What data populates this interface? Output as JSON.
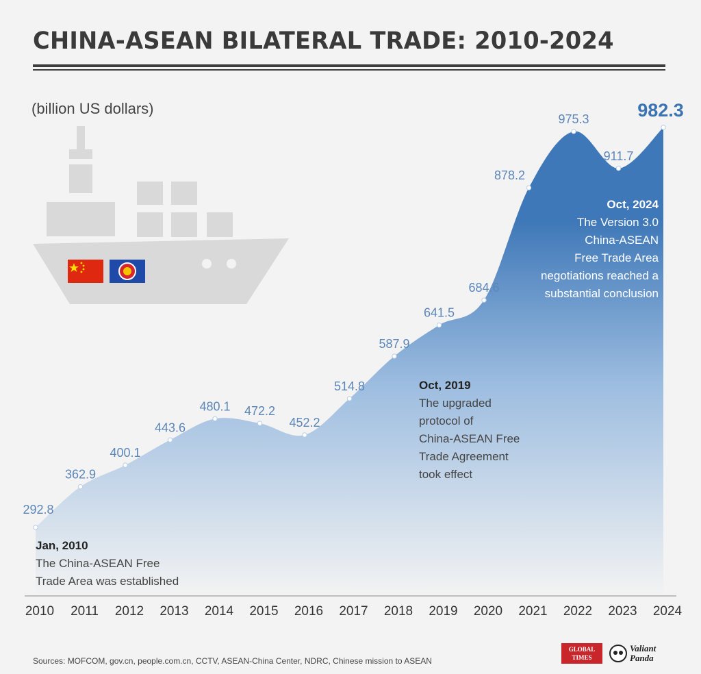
{
  "header": {
    "title": "CHINA-ASEAN BILATERAL TRADE: 2010-2024",
    "unit": "(billion US dollars)"
  },
  "chart_data": {
    "type": "area",
    "x": [
      "2010",
      "2011",
      "2012",
      "2013",
      "2014",
      "2015",
      "2016",
      "2017",
      "2018",
      "2019",
      "2020",
      "2021",
      "2022",
      "2023",
      "2024"
    ],
    "series": [
      {
        "values": [
          292.8,
          362.9,
          400.1,
          443.6,
          480.1,
          472.2,
          452.2,
          514.8,
          587.9,
          641.5,
          684.6,
          878.2,
          975.3,
          911.7,
          982.3
        ]
      }
    ],
    "grid": false,
    "legend": "none"
  },
  "annotations": [
    {
      "id": "2010",
      "date": "Jan, 2010",
      "lines": [
        "The China-ASEAN Free",
        "Trade Area was established"
      ]
    },
    {
      "id": "2019",
      "date": "Oct, 2019",
      "lines": [
        "The upgraded",
        "protocol of",
        "China-ASEAN Free",
        "Trade Agreement",
        "took effect"
      ]
    },
    {
      "id": "2024",
      "date": "Oct, 2024",
      "lines": [
        "The Version 3.0",
        "China-ASEAN",
        "Free Trade Area",
        "negotiations reached a",
        "substantial conclusion"
      ]
    }
  ],
  "footer": {
    "sources": "Sources: MOFCOM, gov.cn, people.com.cn, CCTV, ASEAN-China Center, NDRC, Chinese mission to ASEAN",
    "logo_global_times_line1": "GLOBAL",
    "logo_global_times_line2": "TIMES",
    "logo_valiant_line1": "Valiant",
    "logo_valiant_line2": "Panda"
  },
  "colors": {
    "area_top": "#3f78b8",
    "area_bottom": "#f3f3f3",
    "ship": "#d9d9d9",
    "china_flag": "#de2910",
    "asean_flag": "#1f4aa8"
  },
  "icons": [
    "cargo-ship-icon",
    "china-flag-icon",
    "asean-flag-icon"
  ]
}
